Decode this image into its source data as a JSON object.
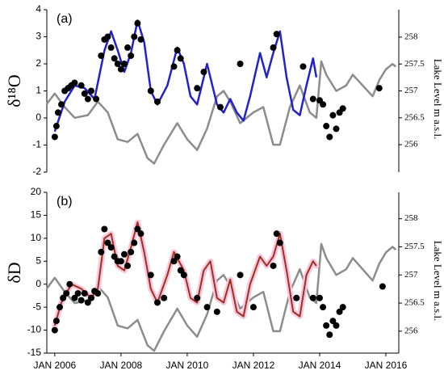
{
  "chart_data": [
    {
      "type": "line",
      "panel_label": "(a)",
      "ylabel": "δ¹⁸O",
      "y2label": "Lake Level m a.s.l.",
      "xlim": [
        2005.76,
        2016.39
      ],
      "ylim": [
        -2,
        4
      ],
      "yticks": [
        -2,
        -1,
        0,
        1,
        2,
        3,
        4
      ],
      "y2lim": [
        255.49,
        258.51
      ],
      "y2ticks": [
        256,
        256.5,
        257,
        257.5,
        258
      ],
      "grid": false,
      "series": [
        {
          "type": "line",
          "axis": "y2",
          "color": "#8c8c8c",
          "x": [
            2005.75,
            2006.0,
            2006.3,
            2006.6,
            2007.0,
            2007.3,
            2007.6,
            2007.9,
            2008.2,
            2008.5,
            2008.8,
            2009.0,
            2009.3,
            2009.7,
            2010.0,
            2010.3,
            2010.6,
            2010.9,
            2011.1,
            2011.3,
            2011.6,
            2012.0,
            2012.3,
            2012.6,
            2012.8,
            2013.1,
            2013.4,
            2013.7,
            2013.9,
            2014.05,
            2014.2,
            2014.5,
            2014.8,
            2015.0,
            2015.3,
            2015.6,
            2015.8,
            2016.0,
            2016.2,
            2016.3
          ],
          "values": [
            256.75,
            256.95,
            256.7,
            256.5,
            256.55,
            256.8,
            256.6,
            256.1,
            256.05,
            256.2,
            255.75,
            255.65,
            256.0,
            256.4,
            256.1,
            255.9,
            256.3,
            256.9,
            257.0,
            256.8,
            256.4,
            256.6,
            256.7,
            256.0,
            256.0,
            256.7,
            257.1,
            256.6,
            256.5,
            257.55,
            257.3,
            257.0,
            257.1,
            257.3,
            257.1,
            256.9,
            257.2,
            257.4,
            257.5,
            257.45
          ]
        },
        {
          "type": "line",
          "color": "#2222cc",
          "x": [
            2006.0,
            2006.3,
            2006.6,
            2006.9,
            2007.2,
            2007.5,
            2007.7,
            2007.9,
            2008.1,
            2008.3,
            2008.5,
            2008.7,
            2008.9,
            2009.1,
            2009.4,
            2009.7,
            2009.9,
            2010.1,
            2010.3,
            2010.6,
            2010.9,
            2011.1,
            2011.3,
            2011.5,
            2011.7,
            2011.9,
            2012.2,
            2012.4,
            2012.6,
            2012.8,
            2013.0,
            2013.2,
            2013.4,
            2013.6,
            2013.8,
            2013.9
          ],
          "values": [
            -0.5,
            0.6,
            1.2,
            1.1,
            0.7,
            2.5,
            3.2,
            2.5,
            1.7,
            2.4,
            3.6,
            2.8,
            1.0,
            0.5,
            1.2,
            2.6,
            2.0,
            0.8,
            0.5,
            2.0,
            0.5,
            0.2,
            0.7,
            0.2,
            -0.1,
            0.8,
            2.4,
            1.5,
            2.4,
            3.2,
            1.5,
            0.3,
            0.1,
            1.2,
            2.2,
            1.5
          ]
        },
        {
          "type": "scatter",
          "color": "#000000",
          "x": [
            2006.0,
            2006.05,
            2006.1,
            2006.2,
            2006.3,
            2006.4,
            2006.5,
            2006.6,
            2006.8,
            2006.9,
            2007.0,
            2007.1,
            2007.25,
            2007.4,
            2007.5,
            2007.6,
            2007.7,
            2007.8,
            2007.9,
            2008.0,
            2008.1,
            2008.2,
            2008.3,
            2008.4,
            2008.5,
            2008.6,
            2008.9,
            2009.1,
            2009.6,
            2009.7,
            2009.8,
            2010.3,
            2010.5,
            2011.0,
            2011.6,
            2012.6,
            2012.7,
            2013.5,
            2013.8,
            2014.0,
            2014.1,
            2014.2,
            2014.3,
            2014.4,
            2014.5,
            2014.6,
            2014.7,
            2015.8
          ],
          "values": [
            -0.7,
            -0.3,
            0.2,
            0.5,
            1.0,
            1.1,
            1.2,
            1.3,
            1.2,
            0.9,
            0.7,
            1.0,
            0.7,
            2.3,
            2.9,
            3.0,
            2.6,
            2.2,
            2.0,
            1.8,
            2.0,
            2.6,
            2.3,
            3.0,
            3.5,
            2.9,
            1.0,
            0.6,
            1.9,
            2.5,
            2.2,
            1.1,
            1.7,
            0.4,
            2.0,
            2.6,
            3.1,
            1.9,
            0.7,
            0.65,
            0.5,
            -0.3,
            -0.7,
            0.1,
            -0.4,
            0.2,
            0.35,
            1.1
          ]
        }
      ]
    },
    {
      "type": "line",
      "panel_label": "(b)",
      "ylabel": "δD",
      "y2label": "Lake Level m a.s.l.",
      "xlim": [
        2005.76,
        2016.39
      ],
      "ylim": [
        -15,
        20
      ],
      "yticks": [
        -15,
        -10,
        -5,
        0,
        5,
        10,
        15,
        20
      ],
      "y2lim": [
        255.61,
        258.47
      ],
      "y2ticks": [
        256,
        256.5,
        257,
        257.5,
        258
      ],
      "grid": false,
      "xticks": [
        {
          "value": 2006,
          "label": "JAN 2006"
        },
        {
          "value": 2008,
          "label": "JAN 2008"
        },
        {
          "value": 2010,
          "label": "JAN 2010"
        },
        {
          "value": 2012,
          "label": "JAN 2012"
        },
        {
          "value": 2014,
          "label": "JAN 2014"
        },
        {
          "value": 2016,
          "label": "JAN 2016"
        }
      ],
      "series": [
        {
          "type": "line",
          "axis": "y2",
          "color": "#8c8c8c",
          "x": [
            2005.75,
            2006.0,
            2006.3,
            2006.6,
            2007.0,
            2007.3,
            2007.6,
            2007.9,
            2008.2,
            2008.5,
            2008.8,
            2009.0,
            2009.3,
            2009.7,
            2010.0,
            2010.3,
            2010.6,
            2010.9,
            2011.1,
            2011.3,
            2011.6,
            2012.0,
            2012.3,
            2012.6,
            2012.8,
            2013.1,
            2013.4,
            2013.7,
            2013.9,
            2014.05,
            2014.2,
            2014.5,
            2014.8,
            2015.0,
            2015.3,
            2015.6,
            2015.8,
            2016.0,
            2016.2,
            2016.3
          ],
          "values": [
            256.75,
            256.95,
            256.7,
            256.5,
            256.55,
            256.8,
            256.6,
            256.1,
            256.05,
            256.2,
            255.75,
            255.65,
            256.0,
            256.4,
            256.1,
            255.9,
            256.3,
            256.9,
            257.0,
            256.8,
            256.4,
            256.6,
            256.7,
            256.0,
            256.0,
            256.7,
            257.1,
            256.6,
            256.5,
            257.55,
            257.3,
            257.0,
            257.1,
            257.3,
            257.1,
            256.9,
            257.2,
            257.4,
            257.5,
            257.45
          ]
        },
        {
          "type": "line",
          "color": "#a0301a",
          "band_color": "#f7c6df",
          "x": [
            2006.0,
            2006.2,
            2006.5,
            2006.8,
            2007.1,
            2007.3,
            2007.5,
            2007.7,
            2007.9,
            2008.1,
            2008.3,
            2008.5,
            2008.7,
            2008.9,
            2009.1,
            2009.4,
            2009.6,
            2009.9,
            2010.1,
            2010.3,
            2010.5,
            2010.7,
            2010.9,
            2011.1,
            2011.3,
            2011.5,
            2011.7,
            2011.9,
            2012.2,
            2012.4,
            2012.6,
            2012.8,
            2013.0,
            2013.2,
            2013.4,
            2013.6,
            2013.8,
            2013.9
          ],
          "values": [
            -9,
            -4,
            0,
            -1,
            -3,
            -1,
            10,
            11,
            4,
            3,
            8,
            13.5,
            7,
            -1,
            -4,
            2,
            7,
            3,
            -3,
            -4,
            3,
            5,
            -3,
            -4,
            1,
            -6,
            -7,
            0,
            6,
            4,
            6,
            11,
            3,
            -6,
            -7,
            2,
            5,
            4
          ]
        },
        {
          "type": "scatter",
          "color": "#000000",
          "x": [
            2006.0,
            2006.05,
            2006.15,
            2006.25,
            2006.35,
            2006.45,
            2006.6,
            2006.7,
            2006.8,
            2006.9,
            2007.0,
            2007.1,
            2007.2,
            2007.3,
            2007.4,
            2007.5,
            2007.6,
            2007.7,
            2007.8,
            2007.9,
            2008.0,
            2008.1,
            2008.2,
            2008.3,
            2008.4,
            2008.5,
            2008.6,
            2008.9,
            2009.1,
            2009.3,
            2009.6,
            2009.7,
            2009.8,
            2009.9,
            2010.3,
            2010.6,
            2010.9,
            2011.6,
            2012.0,
            2012.6,
            2012.7,
            2012.8,
            2013.3,
            2013.8,
            2014.0,
            2014.1,
            2014.2,
            2014.3,
            2014.4,
            2014.5,
            2014.6,
            2014.7,
            2015.9
          ],
          "values": [
            -10,
            -8,
            -5,
            -3,
            -2,
            0,
            -3,
            -2,
            -3.5,
            -2,
            -4,
            -3,
            -1.5,
            -2,
            7,
            12,
            9,
            8,
            6,
            5,
            5,
            6.5,
            4,
            7,
            9,
            12,
            11,
            2,
            -4,
            -3,
            5,
            6,
            3,
            2,
            -3,
            -5,
            -6,
            2,
            -5,
            4,
            11,
            9,
            -3,
            -3,
            -3,
            -5,
            -9,
            -11,
            -8,
            -9,
            -6,
            -5,
            -0.5
          ]
        }
      ]
    }
  ]
}
